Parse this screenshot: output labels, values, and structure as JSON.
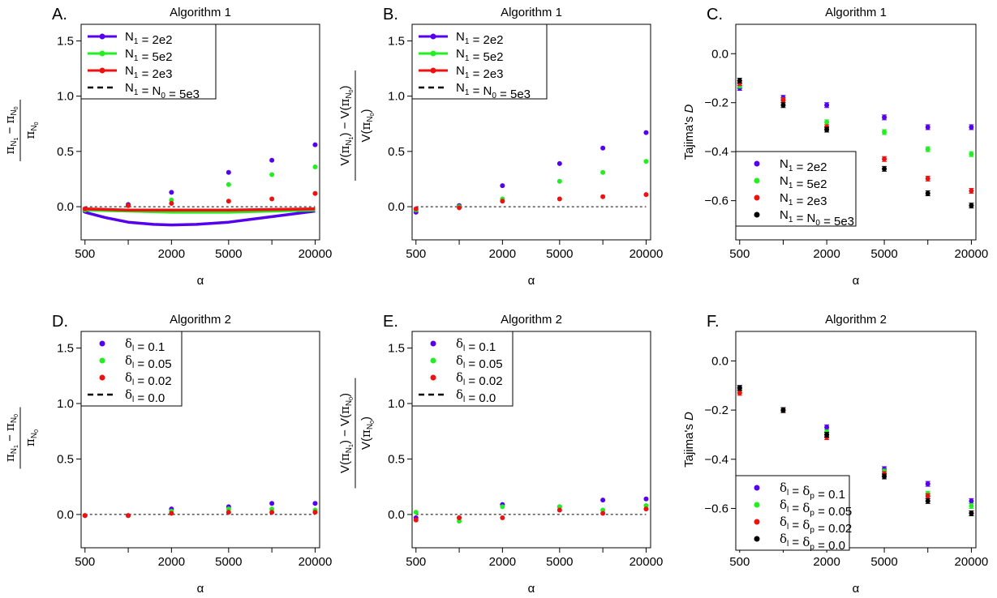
{
  "chart_data": [
    {
      "panel": "A.",
      "title": "Algorithm 1",
      "type": "scatter",
      "xlabel": "α",
      "ylabel": "(π_N1 − π_N0) / π_N0",
      "x_scale": "log",
      "xlim": [
        500,
        20000
      ],
      "ylim": [
        -0.3,
        1.65
      ],
      "x_ticks": [
        500,
        2000,
        5000,
        20000
      ],
      "y_ticks": [
        0.0,
        0.5,
        1.0,
        1.5
      ],
      "y_tick_labels": [
        "0.0",
        "0.5",
        "1.0",
        "1.5"
      ],
      "x": [
        500,
        1000,
        2000,
        5000,
        10000,
        20000
      ],
      "legend_position": "top-left",
      "legend": [
        {
          "label": "N₁ = 2e2",
          "color": "#5500ee",
          "style": "line-point"
        },
        {
          "label": "N₁ = 5e2",
          "color": "#22ee22",
          "style": "line-point"
        },
        {
          "label": "N₁ = 2e3",
          "color": "#ee1111",
          "style": "line-point"
        },
        {
          "label": "N₁ = N₀ = 5e3",
          "color": "#000000",
          "style": "dashed"
        }
      ],
      "series": [
        {
          "color": "#5500ee",
          "values": [
            -0.04,
            0.02,
            0.13,
            0.31,
            0.42,
            0.56
          ]
        },
        {
          "color": "#22ee22",
          "values": [
            -0.03,
            0.01,
            0.06,
            0.2,
            0.29,
            0.36
          ]
        },
        {
          "color": "#ee1111",
          "values": [
            -0.02,
            0.01,
            0.03,
            0.05,
            0.07,
            0.12
          ]
        }
      ],
      "curves": [
        {
          "color": "#5500ee",
          "x": [
            500,
            700,
            1000,
            1500,
            2000,
            3000,
            5000,
            10000,
            20000
          ],
          "y": [
            -0.05,
            -0.1,
            -0.14,
            -0.16,
            -0.165,
            -0.16,
            -0.14,
            -0.09,
            -0.04
          ]
        },
        {
          "color": "#22ee22",
          "x": [
            500,
            1000,
            2000,
            5000,
            10000,
            20000
          ],
          "y": [
            -0.03,
            -0.04,
            -0.05,
            -0.05,
            -0.04,
            -0.03
          ]
        },
        {
          "color": "#ee1111",
          "x": [
            500,
            1000,
            2000,
            5000,
            10000,
            20000
          ],
          "y": [
            -0.02,
            -0.03,
            -0.03,
            -0.03,
            -0.025,
            -0.02
          ]
        }
      ],
      "reference_line": 0.0
    },
    {
      "panel": "B.",
      "title": "Algorithm 1",
      "type": "scatter",
      "xlabel": "α",
      "ylabel": "(V(π_N1) − V(π_N0)) / V(π_N0)",
      "x_scale": "log",
      "xlim": [
        500,
        20000
      ],
      "ylim": [
        -0.3,
        1.65
      ],
      "x_ticks": [
        500,
        2000,
        5000,
        20000
      ],
      "y_ticks": [
        0.0,
        0.5,
        1.0,
        1.5
      ],
      "y_tick_labels": [
        "0.0",
        "0.5",
        "1.0",
        "1.5"
      ],
      "x": [
        500,
        1000,
        2000,
        5000,
        10000,
        20000
      ],
      "legend_position": "top-left",
      "legend": [
        {
          "label": "N₁ = 2e2",
          "color": "#5500ee",
          "style": "line-point"
        },
        {
          "label": "N₁ = 5e2",
          "color": "#22ee22",
          "style": "line-point"
        },
        {
          "label": "N₁ = 2e3",
          "color": "#ee1111",
          "style": "line-point"
        },
        {
          "label": "N₁ = N₀ = 5e3",
          "color": "#000000",
          "style": "dashed"
        }
      ],
      "series": [
        {
          "color": "#5500ee",
          "values": [
            -0.05,
            0.01,
            0.19,
            0.39,
            0.53,
            0.67
          ]
        },
        {
          "color": "#22ee22",
          "values": [
            -0.03,
            0.0,
            0.07,
            0.23,
            0.31,
            0.41
          ]
        },
        {
          "color": "#ee1111",
          "values": [
            -0.02,
            -0.01,
            0.05,
            0.07,
            0.09,
            0.11
          ]
        }
      ],
      "reference_line": 0.0
    },
    {
      "panel": "C.",
      "title": "Algorithm 1",
      "type": "scatter",
      "xlabel": "α",
      "ylabel": "Tajima's D",
      "x_scale": "log",
      "xlim": [
        500,
        20000
      ],
      "ylim": [
        -0.76,
        0.12
      ],
      "x_ticks": [
        500,
        2000,
        5000,
        20000
      ],
      "y_ticks": [
        0.0,
        -0.2,
        -0.4,
        -0.6
      ],
      "y_tick_labels": [
        "0.0",
        "−0.2",
        "−0.4",
        "−0.6"
      ],
      "x": [
        500,
        1000,
        2000,
        5000,
        10000,
        20000
      ],
      "legend_position": "bottom-left",
      "legend": [
        {
          "label": "N₁ = 2e2",
          "color": "#5500ee",
          "style": "point"
        },
        {
          "label": "N₁ = 5e2",
          "color": "#22ee22",
          "style": "point"
        },
        {
          "label": "N₁ = 2e3",
          "color": "#ee1111",
          "style": "point"
        },
        {
          "label": "N₁ = N₀ = 5e3",
          "color": "#000000",
          "style": "point"
        }
      ],
      "series": [
        {
          "color": "#5500ee",
          "values": [
            -0.14,
            -0.18,
            -0.21,
            -0.26,
            -0.3,
            -0.3
          ]
        },
        {
          "color": "#22ee22",
          "values": [
            -0.13,
            -0.19,
            -0.28,
            -0.32,
            -0.39,
            -0.41
          ]
        },
        {
          "color": "#ee1111",
          "values": [
            -0.12,
            -0.19,
            -0.3,
            -0.43,
            -0.51,
            -0.56
          ]
        },
        {
          "color": "#000000",
          "values": [
            -0.11,
            -0.21,
            -0.31,
            -0.47,
            -0.57,
            -0.62
          ]
        }
      ],
      "error_bars": true
    },
    {
      "panel": "D.",
      "title": "Algorithm 2",
      "type": "scatter",
      "xlabel": "α",
      "ylabel": "(π_N1 − π_N0) / π_N0",
      "x_scale": "log",
      "xlim": [
        500,
        20000
      ],
      "ylim": [
        -0.3,
        1.65
      ],
      "x_ticks": [
        500,
        2000,
        5000,
        20000
      ],
      "y_ticks": [
        0.0,
        0.5,
        1.0,
        1.5
      ],
      "y_tick_labels": [
        "0.0",
        "0.5",
        "1.0",
        "1.5"
      ],
      "x": [
        500,
        1000,
        2000,
        5000,
        10000,
        20000
      ],
      "legend_position": "top-left",
      "legend": [
        {
          "label": "δₗ = 0.1",
          "color": "#5500ee",
          "style": "point"
        },
        {
          "label": "δₗ = 0.05",
          "color": "#22ee22",
          "style": "point"
        },
        {
          "label": "δₗ = 0.02",
          "color": "#ee1111",
          "style": "point"
        },
        {
          "label": "δₗ = 0.0",
          "color": "#000000",
          "style": "dashed"
        }
      ],
      "series": [
        {
          "color": "#5500ee",
          "values": [
            -0.01,
            -0.01,
            0.05,
            0.07,
            0.1,
            0.1
          ]
        },
        {
          "color": "#22ee22",
          "values": [
            -0.01,
            -0.01,
            0.03,
            0.05,
            0.05,
            0.04
          ]
        },
        {
          "color": "#ee1111",
          "values": [
            -0.01,
            -0.01,
            0.01,
            0.02,
            0.02,
            0.02
          ]
        }
      ],
      "reference_line": 0.0
    },
    {
      "panel": "E.",
      "title": "Algorithm 2",
      "type": "scatter",
      "xlabel": "α",
      "ylabel": "(V(π_N1) − V(π_N0)) / V(π_N0)",
      "x_scale": "log",
      "xlim": [
        500,
        20000
      ],
      "ylim": [
        -0.3,
        1.65
      ],
      "x_ticks": [
        500,
        2000,
        5000,
        20000
      ],
      "y_ticks": [
        0.0,
        0.5,
        1.0,
        1.5
      ],
      "y_tick_labels": [
        "0.0",
        "0.5",
        "1.0",
        "1.5"
      ],
      "x": [
        500,
        1000,
        2000,
        5000,
        10000,
        20000
      ],
      "legend_position": "top-left",
      "legend": [
        {
          "label": "δₗ = 0.1",
          "color": "#5500ee",
          "style": "point"
        },
        {
          "label": "δₗ = 0.05",
          "color": "#22ee22",
          "style": "point"
        },
        {
          "label": "δₗ = 0.02",
          "color": "#ee1111",
          "style": "point"
        },
        {
          "label": "δₗ = 0.0",
          "color": "#000000",
          "style": "dashed"
        }
      ],
      "series": [
        {
          "color": "#5500ee",
          "values": [
            -0.03,
            -0.03,
            0.09,
            0.07,
            0.13,
            0.14
          ]
        },
        {
          "color": "#22ee22",
          "values": [
            0.02,
            -0.06,
            0.07,
            0.07,
            0.04,
            0.08
          ]
        },
        {
          "color": "#ee1111",
          "values": [
            -0.05,
            -0.03,
            -0.03,
            0.04,
            0.01,
            0.05
          ]
        }
      ],
      "reference_line": 0.0
    },
    {
      "panel": "F.",
      "title": "Algorithm 2",
      "type": "scatter",
      "xlabel": "α",
      "ylabel": "Tajima's D",
      "x_scale": "log",
      "xlim": [
        500,
        20000
      ],
      "ylim": [
        -0.76,
        0.12
      ],
      "x_ticks": [
        500,
        2000,
        5000,
        20000
      ],
      "y_ticks": [
        0.0,
        -0.2,
        -0.4,
        -0.6
      ],
      "y_tick_labels": [
        "0.0",
        "−0.2",
        "−0.4",
        "−0.6"
      ],
      "x": [
        500,
        1000,
        2000,
        5000,
        10000,
        20000
      ],
      "legend_position": "bottom-left",
      "legend": [
        {
          "label": "δₗ = δₚ = 0.1",
          "color": "#5500ee",
          "style": "point"
        },
        {
          "label": "δₗ = δₚ = 0.05",
          "color": "#22ee22",
          "style": "point"
        },
        {
          "label": "δₗ = δₚ = 0.02",
          "color": "#ee1111",
          "style": "point"
        },
        {
          "label": "δₗ = δₚ = 0.0",
          "color": "#000000",
          "style": "point"
        }
      ],
      "series": [
        {
          "color": "#5500ee",
          "values": [
            -0.11,
            -0.2,
            -0.27,
            -0.44,
            -0.5,
            -0.57
          ]
        },
        {
          "color": "#22ee22",
          "values": [
            -0.12,
            -0.2,
            -0.29,
            -0.45,
            -0.54,
            -0.59
          ]
        },
        {
          "color": "#ee1111",
          "values": [
            -0.13,
            -0.2,
            -0.31,
            -0.46,
            -0.55,
            -0.62
          ]
        },
        {
          "color": "#000000",
          "values": [
            -0.11,
            -0.2,
            -0.3,
            -0.47,
            -0.57,
            -0.62
          ]
        }
      ],
      "error_bars": true
    }
  ]
}
